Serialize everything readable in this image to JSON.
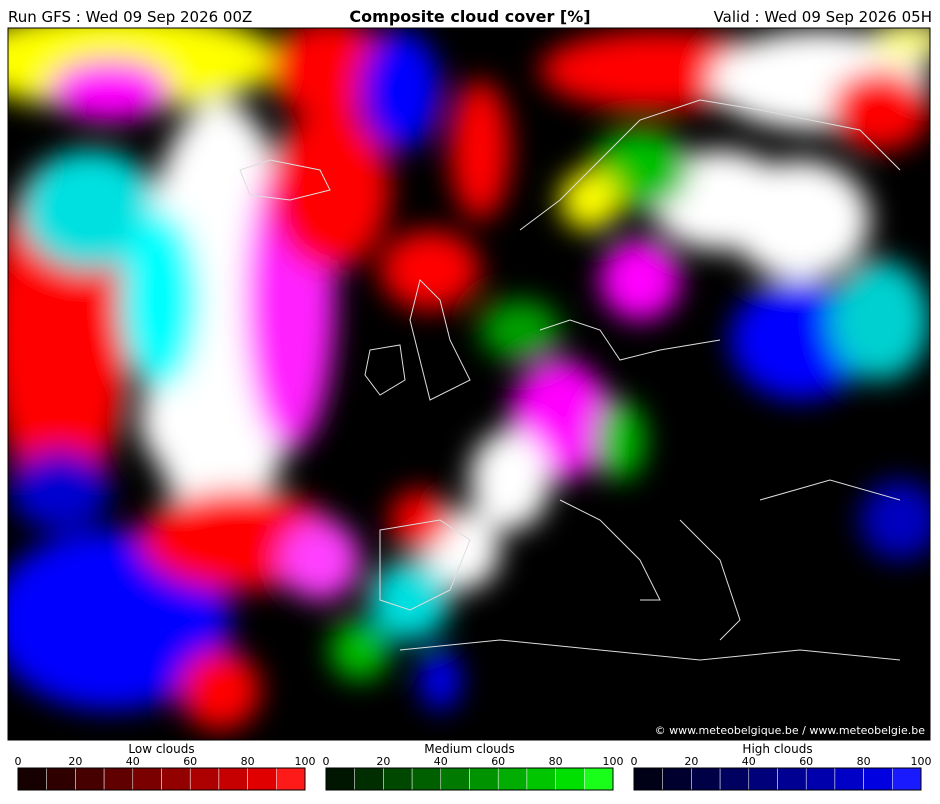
{
  "header": {
    "run": "Run GFS : Wed 09 Sep 2026 00Z",
    "title": "Composite cloud cover [%]",
    "valid": "Valid : Wed 09 Sep 2026 05H"
  },
  "map": {
    "credit": "© www.meteobelgique.be / www.meteobelgie.be"
  },
  "legends": [
    {
      "name": "Low clouds",
      "range": [
        0,
        100
      ],
      "ticks": [
        0,
        20,
        40,
        60,
        80,
        100
      ],
      "colors": [
        "#160000",
        "#2e0000",
        "#470000",
        "#600000",
        "#7a0000",
        "#930000",
        "#ad0000",
        "#c60000",
        "#e00000",
        "#ff1a1a"
      ]
    },
    {
      "name": "Medium clouds",
      "range": [
        0,
        100
      ],
      "ticks": [
        0,
        20,
        40,
        60,
        80,
        100
      ],
      "colors": [
        "#001600",
        "#002e00",
        "#004700",
        "#006000",
        "#007a00",
        "#009300",
        "#00ad00",
        "#00c600",
        "#00e000",
        "#1aff1a"
      ]
    },
    {
      "name": "High clouds",
      "range": [
        0,
        100
      ],
      "ticks": [
        0,
        20,
        40,
        60,
        80,
        100
      ],
      "colors": [
        "#000016",
        "#00002e",
        "#000047",
        "#000060",
        "#00007a",
        "#000093",
        "#0000ad",
        "#0000c6",
        "#0000e0",
        "#1a1aff"
      ]
    }
  ]
}
